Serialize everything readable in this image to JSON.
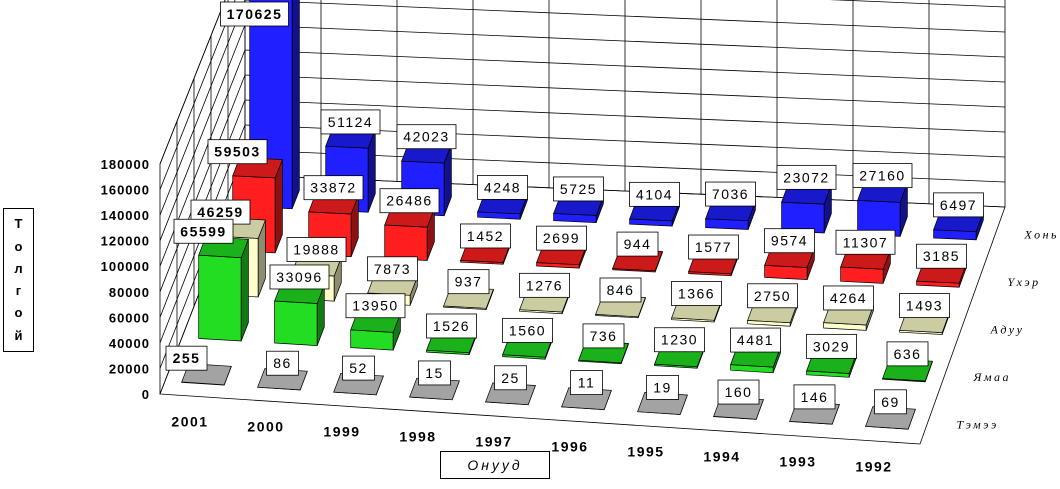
{
  "chart_data": {
    "type": "bar",
    "title": "",
    "xlabel": "Онууд",
    "ylabel": "Толгой",
    "ylim": [
      0,
      180000
    ],
    "yticks": [
      "0",
      "20000",
      "40000",
      "60000",
      "80000",
      "100000",
      "120000",
      "140000",
      "160000",
      "180000"
    ],
    "categories": [
      "2001",
      "2000",
      "1999",
      "1998",
      "1997",
      "1996",
      "1995",
      "1994",
      "1993",
      "1992"
    ],
    "series": [
      {
        "name": "Хонь",
        "color": "#1f1fff",
        "values": [
          170625,
          51124,
          42023,
          4248,
          5725,
          4104,
          7036,
          23072,
          27160,
          6497
        ],
        "labels": [
          "170625",
          "51124",
          "42023",
          "4248",
          "5725",
          "4104",
          "7036",
          "23072",
          "27160",
          "6497"
        ]
      },
      {
        "name": "Үхэр",
        "color": "#ff1f1f",
        "values": [
          59503,
          33872,
          26486,
          1452,
          2699,
          944,
          1577,
          9574,
          11307,
          3185
        ],
        "labels": [
          "59503",
          "33872",
          "26486",
          "1452",
          "2699",
          "944",
          "1577",
          "9574",
          "11307",
          "3185"
        ]
      },
      {
        "name": "Адуу",
        "color": "#ffffcc",
        "values": [
          46259,
          19888,
          7873,
          937,
          1276,
          846,
          1366,
          2750,
          4264,
          1493
        ],
        "labels": [
          "46259",
          "19888",
          "7873",
          "937",
          "1276",
          "846",
          "1366",
          "2750",
          "4264",
          "1493"
        ]
      },
      {
        "name": "Ямаа",
        "color": "#22dd22",
        "values": [
          65599,
          33096,
          13950,
          1526,
          1560,
          736,
          1230,
          4481,
          3029,
          636
        ],
        "labels": [
          "65599",
          "33096",
          "13950",
          "1526",
          "1560",
          "736",
          "1230",
          "4481",
          "3029",
          "636"
        ]
      },
      {
        "name": "Тэмээ",
        "color": "#cccccc",
        "values": [
          255,
          86,
          52,
          15,
          25,
          11,
          19,
          160,
          146,
          69
        ],
        "labels": [
          "255",
          "86",
          "52",
          "15",
          "25",
          "11",
          "19",
          "160",
          "146",
          "69"
        ]
      }
    ],
    "legend": "depth-axis-right",
    "grid": true
  }
}
